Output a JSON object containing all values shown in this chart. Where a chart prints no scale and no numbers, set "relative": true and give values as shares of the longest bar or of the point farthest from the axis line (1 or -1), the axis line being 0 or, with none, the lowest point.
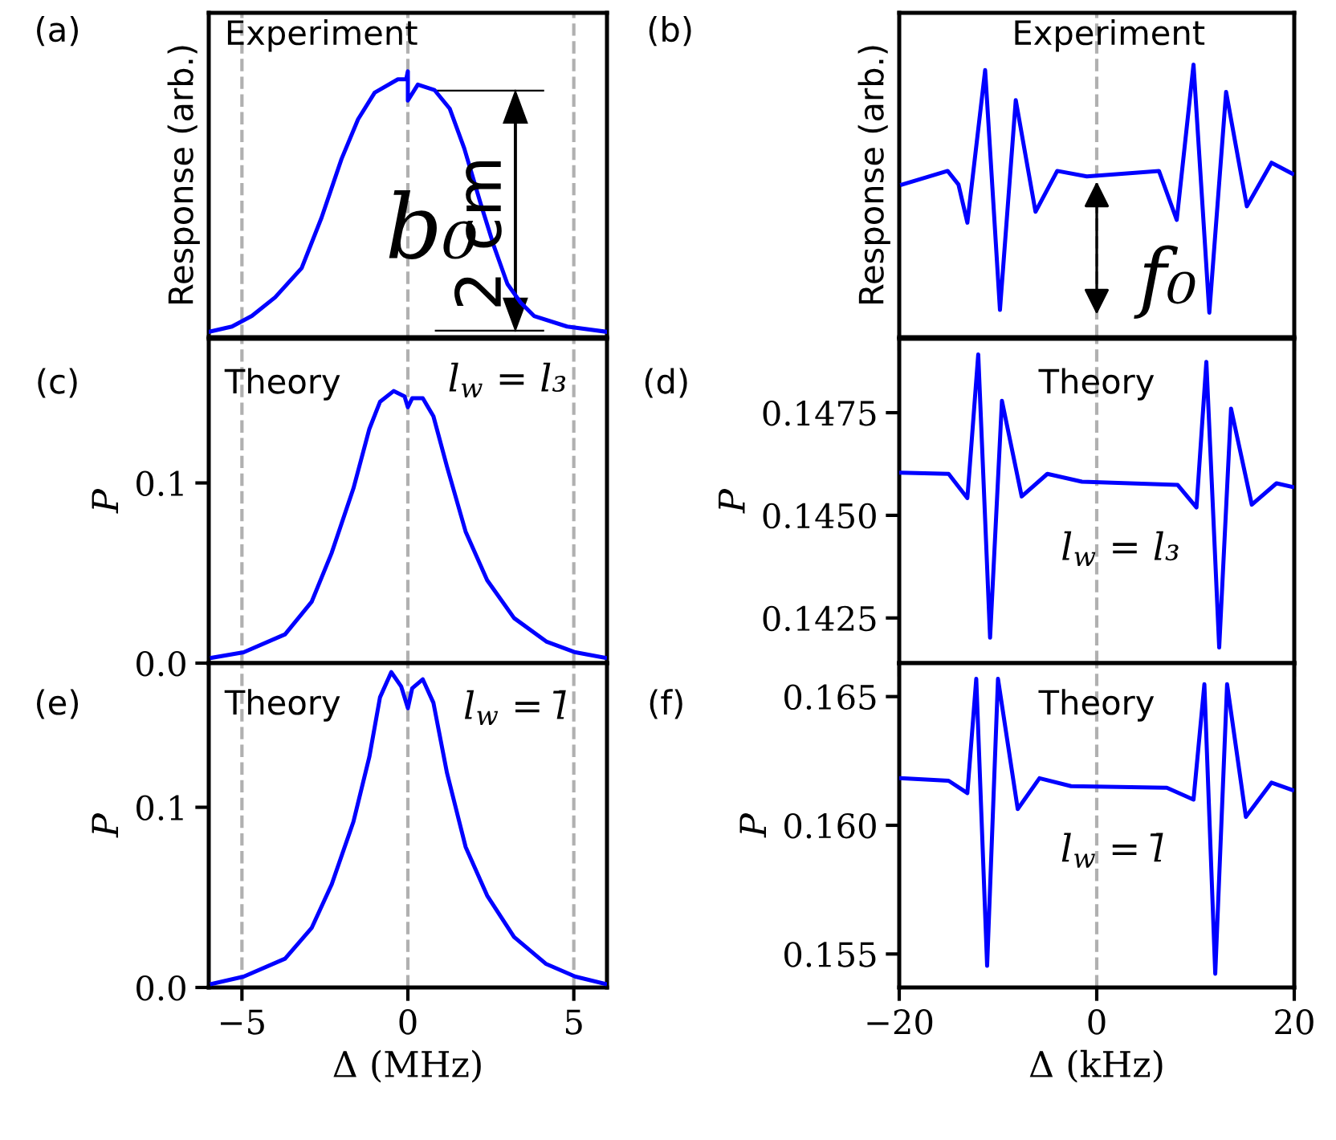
{
  "chart_data": [
    {
      "type": "line",
      "relative": true,
      "ylabel": "Response (arb.)",
      "tick_labels": false,
      "color": "#0000ff",
      "xlim": [
        -6,
        6
      ],
      "xticks": [
        -5,
        0,
        5
      ],
      "x": [
        -6,
        -5.3,
        -4.7,
        -4.0,
        -3.2,
        -2.6,
        -2.0,
        -1.5,
        -1.0,
        -0.3,
        -0.05,
        0,
        0,
        0.3,
        0.8,
        1.26,
        1.7,
        2.2,
        2.6,
        3.0,
        3.4,
        3.8,
        4.8,
        6
      ],
      "values": [
        0.02,
        0.04,
        0.08,
        0.15,
        0.26,
        0.45,
        0.67,
        0.82,
        0.92,
        0.97,
        0.97,
        1.0,
        0.89,
        0.95,
        0.93,
        0.86,
        0.71,
        0.5,
        0.34,
        0.2,
        0.13,
        0.08,
        0.04,
        0.02
      ],
      "ref_lines": [
        {
          "axis": "x",
          "value": -5,
          "color": "#b0b0b0",
          "line_style": "dashed"
        },
        {
          "axis": "x",
          "value": 0,
          "color": "#b0b0b0",
          "line_style": "dashed"
        },
        {
          "axis": "x",
          "value": 5,
          "color": "#b0b0b0",
          "line_style": "dashed"
        }
      ],
      "annotations": [
        "(a)",
        "Experiment",
        "b₀",
        "2 cm"
      ]
    },
    {
      "type": "line",
      "relative": true,
      "ylabel": "Response (arb.)",
      "tick_labels": false,
      "color": "#0000ff",
      "xlim": [
        -20,
        20
      ],
      "xticks": [
        -20,
        0,
        20
      ],
      "x": [
        -19.7,
        -15.1,
        -14.0,
        -13.1,
        -11.3,
        -9.8,
        -8.2,
        -6.2,
        -4.0,
        -1.0,
        2.8,
        6.3,
        8.1,
        9.8,
        11.4,
        13.1,
        15.2,
        17.7,
        19.8
      ],
      "values": [
        0.56,
        0.61,
        0.56,
        0.42,
        0.98,
        0.1,
        0.87,
        0.46,
        0.61,
        0.59,
        0.6,
        0.61,
        0.43,
        1.0,
        0.09,
        0.9,
        0.48,
        0.64,
        0.6
      ],
      "ref_lines": [
        {
          "axis": "x",
          "value": 0,
          "color": "#b0b0b0",
          "line_style": "dashed"
        }
      ],
      "annotations": [
        "(b)",
        "Experiment",
        "f₀"
      ]
    },
    {
      "type": "line",
      "ylabel": "P",
      "tick_labels": "y",
      "color": "#0000ff",
      "xlim": [
        -6,
        6
      ],
      "xticks": [
        -5,
        0,
        5
      ],
      "ylim": [
        0,
        0.18
      ],
      "yticks": [
        {
          "value": 0,
          "label": "0.0"
        },
        0.1
      ],
      "x": [
        -5.9,
        -4.95,
        -3.7,
        -2.9,
        -2.3,
        -1.64,
        -1.16,
        -0.84,
        -0.43,
        -0.1,
        0,
        0.13,
        0.45,
        0.77,
        1.18,
        1.74,
        2.39,
        3.2,
        4.17,
        5.05,
        5.94
      ],
      "values": [
        0.003,
        0.006,
        0.016,
        0.034,
        0.061,
        0.097,
        0.13,
        0.145,
        0.151,
        0.148,
        0.142,
        0.147,
        0.147,
        0.137,
        0.109,
        0.073,
        0.046,
        0.025,
        0.012,
        0.006,
        0.003
      ],
      "ref_lines": [
        {
          "axis": "x",
          "value": -5,
          "color": "#b0b0b0",
          "line_style": "dashed"
        },
        {
          "axis": "x",
          "value": 0,
          "color": "#b0b0b0",
          "line_style": "dashed"
        },
        {
          "axis": "x",
          "value": 5,
          "color": "#b0b0b0",
          "line_style": "dashed"
        }
      ],
      "annotations": [
        "(c)",
        "Theory",
        "l$_{w}$ = l₃"
      ]
    },
    {
      "type": "line",
      "ylabel": "P",
      "tick_labels": "y",
      "color": "#0000ff",
      "xlim": [
        -20,
        20
      ],
      "xticks": [
        -20,
        0,
        20
      ],
      "ylim": [
        0.1414,
        0.1493
      ],
      "yticks": [
        0.1425,
        {
          "value": 0.145,
          "label": "0.1450"
        },
        0.1475
      ],
      "x": [
        -19.9,
        -15.0,
        -13.1,
        -12.0,
        -10.8,
        -9.6,
        -7.6,
        -5.0,
        -1.5,
        8.2,
        10.1,
        11.1,
        12.4,
        13.6,
        15.7,
        18.2,
        19.8
      ],
      "values": [
        0.14604,
        0.14601,
        0.14542,
        0.14892,
        0.14202,
        0.14779,
        0.14546,
        0.14601,
        0.14582,
        0.14574,
        0.14519,
        0.14874,
        0.14178,
        0.1476,
        0.14526,
        0.14578,
        0.14569
      ],
      "ref_lines": [
        {
          "axis": "x",
          "value": 0,
          "color": "#b0b0b0",
          "line_style": "dashed"
        }
      ],
      "annotations": [
        "(d)",
        "Theory",
        "l$_{w}$ = l₃"
      ]
    },
    {
      "type": "line",
      "ylabel": "P",
      "xlabel": "Δ (MHz)",
      "color": "#0000ff",
      "xlim": [
        -6,
        6
      ],
      "xticks": [
        {
          "value": -5,
          "label": "−5"
        },
        0,
        5
      ],
      "ylim": [
        0,
        0.18
      ],
      "yticks": [
        {
          "value": 0,
          "label": "0.0"
        },
        0.1
      ],
      "x": [
        -5.9,
        -4.95,
        -3.7,
        -2.9,
        -2.3,
        -1.64,
        -1.16,
        -0.84,
        -0.5,
        -0.2,
        0,
        0.13,
        0.45,
        0.77,
        1.18,
        1.74,
        2.39,
        3.2,
        4.17,
        5.05,
        5.94
      ],
      "values": [
        0.002,
        0.006,
        0.016,
        0.033,
        0.057,
        0.092,
        0.128,
        0.161,
        0.175,
        0.167,
        0.155,
        0.166,
        0.171,
        0.158,
        0.119,
        0.078,
        0.051,
        0.028,
        0.013,
        0.006,
        0.002
      ],
      "ref_lines": [
        {
          "axis": "x",
          "value": -5,
          "color": "#b0b0b0",
          "line_style": "dashed"
        },
        {
          "axis": "x",
          "value": 0,
          "color": "#b0b0b0",
          "line_style": "dashed"
        },
        {
          "axis": "x",
          "value": 5,
          "color": "#b0b0b0",
          "line_style": "dashed"
        }
      ],
      "annotations": [
        "(e)",
        "Theory",
        "l$_{w}$ = l̄"
      ]
    },
    {
      "type": "line",
      "ylabel": "P",
      "xlabel": "Δ (kHz)",
      "color": "#0000ff",
      "xlim": [
        -20,
        20
      ],
      "xticks": [
        {
          "value": -20,
          "label": "−20"
        },
        0,
        20
      ],
      "ylim": [
        0.1537,
        0.1663
      ],
      "yticks": [
        0.155,
        {
          "value": 0.16,
          "label": "0.160"
        },
        0.165
      ],
      "x": [
        -19.9,
        -15.0,
        -13.1,
        -12.2,
        -11.1,
        -10.0,
        -8.0,
        -5.8,
        -2.6,
        7.1,
        9.8,
        10.9,
        12.0,
        13.2,
        15.1,
        17.7,
        19.8
      ],
      "values": [
        0.16183,
        0.16173,
        0.16125,
        0.16569,
        0.15454,
        0.16569,
        0.16063,
        0.16183,
        0.16152,
        0.16146,
        0.161,
        0.16548,
        0.15423,
        0.16548,
        0.16033,
        0.16166,
        0.16137
      ],
      "ref_lines": [
        {
          "axis": "x",
          "value": 0,
          "color": "#b0b0b0",
          "line_style": "dashed"
        }
      ],
      "annotations": [
        "(f)",
        "Theory",
        "l$_{w}$ = l̄"
      ]
    }
  ]
}
